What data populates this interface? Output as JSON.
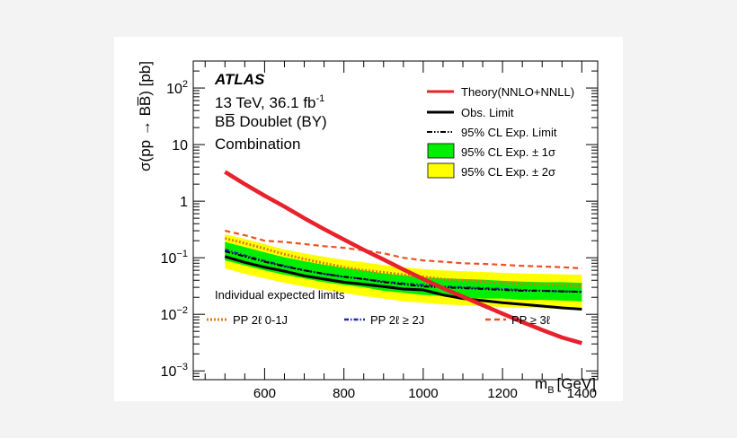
{
  "chart_data": {
    "type": "line",
    "yscale": "log",
    "xlim": [
      420,
      1440
    ],
    "ylim": [
      0.0007,
      300
    ],
    "xlabel": "m",
    "xlabel_sub": "B",
    "xlabel_unit": "[GeV]",
    "ylabel": "σ(pp → BB̅) [pb]",
    "x_ticks": [
      600,
      800,
      1000,
      1200,
      1400
    ],
    "x_tick_labels": [
      "600",
      "800",
      "1000",
      "1200",
      "1400"
    ],
    "y_ticks": [
      0.001,
      0.01,
      0.1,
      1,
      10,
      100
    ],
    "y_tick_labels": [
      {
        "base": "10",
        "exp": "−3"
      },
      {
        "base": "10",
        "exp": "−2"
      },
      {
        "base": "10",
        "exp": "−1"
      },
      {
        "base": "1",
        "exp": ""
      },
      {
        "base": "10",
        "exp": ""
      },
      {
        "base": "10",
        "exp": "2"
      }
    ],
    "annotations": {
      "experiment": "ATLAS",
      "energy": "13 TeV, 36.1 fb",
      "energy_sup": "-1",
      "model": "BB̅ Doublet (BY)",
      "analysis": "Combination",
      "individual_title": "Individual expected limits"
    },
    "legend": [
      {
        "key": "theory",
        "label": "Theory(NNLO+NNLL)",
        "color": "#e8212b",
        "style": "band-line"
      },
      {
        "key": "obs",
        "label": "Obs. Limit",
        "color": "#000000",
        "style": "line"
      },
      {
        "key": "exp",
        "label": "95% CL Exp. Limit",
        "color": "#000000",
        "style": "dashdot"
      },
      {
        "key": "band1",
        "label": "95% CL Exp. ± 1σ",
        "color": "#00ee00",
        "style": "box"
      },
      {
        "key": "band2",
        "label": "95% CL Exp. ± 2σ",
        "color": "#ffff00",
        "style": "box"
      }
    ],
    "bottom_legend": [
      {
        "label": "PP 2ℓ 0-1J",
        "color": "#e07b13",
        "style": "dotted"
      },
      {
        "label": "PP 2ℓ ≥ 2J",
        "color": "#1f2aa8",
        "style": "dashdot"
      },
      {
        "label": "PP ≥ 3ℓ",
        "color": "#f05020",
        "style": "dashed"
      }
    ],
    "x": [
      500,
      550,
      600,
      650,
      700,
      750,
      800,
      850,
      900,
      950,
      1000,
      1050,
      1100,
      1150,
      1200,
      1250,
      1300,
      1350,
      1400
    ],
    "series": [
      {
        "name": "Theory(NNLO+NNLL)",
        "color": "#e8212b",
        "values": [
          3.3,
          2.0,
          1.25,
          0.8,
          0.5,
          0.32,
          0.21,
          0.138,
          0.093,
          0.062,
          0.042,
          0.029,
          0.0205,
          0.0145,
          0.0103,
          0.0073,
          0.0053,
          0.0039,
          0.0031
        ]
      },
      {
        "name": "Obs. Limit",
        "color": "#000000",
        "values": [
          0.105,
          0.083,
          0.068,
          0.058,
          0.048,
          0.042,
          0.037,
          0.034,
          0.031,
          0.028,
          0.027,
          0.022,
          0.019,
          0.0175,
          0.016,
          0.015,
          0.014,
          0.013,
          0.0123
        ]
      },
      {
        "name": "95% CL Exp. Limit",
        "color": "#000000",
        "values": [
          0.13,
          0.105,
          0.085,
          0.07,
          0.06,
          0.052,
          0.046,
          0.042,
          0.037,
          0.034,
          0.031,
          0.03,
          0.029,
          0.028,
          0.027,
          0.026,
          0.026,
          0.0255,
          0.025
        ]
      },
      {
        "name": "PP 2ℓ 0-1J",
        "color": "#e07b13",
        "values": [
          0.22,
          0.18,
          0.145,
          0.115,
          0.095,
          0.08,
          0.068,
          0.06,
          0.055,
          0.05,
          0.046,
          0.042,
          0.04,
          0.038,
          0.036,
          0.035,
          0.034,
          0.033,
          0.032
        ]
      },
      {
        "name": "PP 2ℓ ≥ 2J",
        "color": "#1f2aa8",
        "values": [
          0.14,
          0.11,
          0.088,
          0.072,
          0.06,
          0.052,
          0.046,
          0.042,
          0.038,
          0.035,
          0.033,
          0.031,
          0.03,
          0.029,
          0.028,
          0.027,
          0.026,
          0.0255,
          0.025
        ]
      },
      {
        "name": "PP ≥ 3ℓ",
        "color": "#f05020",
        "values": [
          0.3,
          0.25,
          0.2,
          0.19,
          0.175,
          0.16,
          0.15,
          0.135,
          0.12,
          0.1,
          0.09,
          0.085,
          0.08,
          0.078,
          0.075,
          0.072,
          0.07,
          0.068,
          0.065
        ]
      }
    ],
    "bands": {
      "one_sigma_low": [
        0.09,
        0.073,
        0.06,
        0.05,
        0.043,
        0.037,
        0.033,
        0.03,
        0.026,
        0.024,
        0.022,
        0.021,
        0.02,
        0.019,
        0.019,
        0.018,
        0.018,
        0.0175,
        0.017
      ],
      "one_sigma_high": [
        0.19,
        0.155,
        0.125,
        0.102,
        0.087,
        0.075,
        0.066,
        0.06,
        0.053,
        0.049,
        0.045,
        0.043,
        0.042,
        0.041,
        0.039,
        0.038,
        0.037,
        0.037,
        0.036
      ],
      "two_sigma_low": [
        0.065,
        0.052,
        0.043,
        0.036,
        0.031,
        0.027,
        0.024,
        0.021,
        0.019,
        0.017,
        0.016,
        0.015,
        0.0145,
        0.014,
        0.0135,
        0.013,
        0.0128,
        0.0125,
        0.012
      ],
      "two_sigma_high": [
        0.26,
        0.215,
        0.175,
        0.14,
        0.12,
        0.104,
        0.092,
        0.083,
        0.074,
        0.068,
        0.063,
        0.06,
        0.058,
        0.056,
        0.054,
        0.053,
        0.052,
        0.051,
        0.05
      ]
    }
  }
}
